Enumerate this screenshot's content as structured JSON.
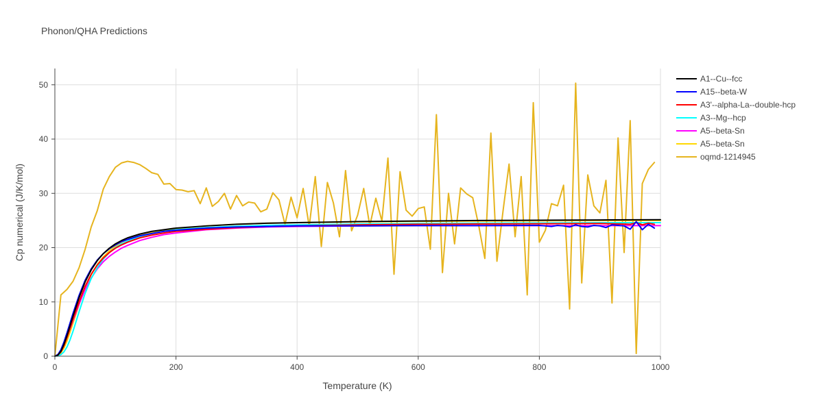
{
  "chart_data": {
    "type": "line",
    "title": "Phonon/QHA Predictions",
    "xlabel": "Temperature (K)",
    "ylabel": "Cp numerical (J/K/mol)",
    "xlim": [
      0,
      1000
    ],
    "ylim": [
      0,
      53
    ],
    "xticks": [
      0,
      200,
      400,
      600,
      800,
      1000
    ],
    "yticks": [
      0,
      10,
      20,
      30,
      40,
      50
    ],
    "grid": true,
    "legend_position": "top-right",
    "series": [
      {
        "name": "A1--Cu--fcc",
        "color": "#000000",
        "x": [
          0,
          5,
          10,
          15,
          20,
          25,
          30,
          40,
          50,
          60,
          70,
          80,
          90,
          100,
          110,
          120,
          140,
          160,
          180,
          200,
          250,
          300,
          350,
          400,
          500,
          600,
          700,
          800,
          900,
          1000
        ],
        "y": [
          0,
          0.2,
          0.9,
          2.2,
          3.8,
          5.6,
          7.4,
          10.8,
          13.7,
          15.9,
          17.6,
          18.9,
          19.9,
          20.7,
          21.3,
          21.8,
          22.5,
          23.0,
          23.3,
          23.6,
          24.0,
          24.3,
          24.5,
          24.6,
          24.8,
          24.9,
          25.0,
          25.05,
          25.1,
          25.15
        ]
      },
      {
        "name": "A15--beta-W",
        "color": "#0000ff",
        "x": [
          0,
          5,
          10,
          15,
          20,
          25,
          30,
          40,
          50,
          60,
          70,
          80,
          90,
          100,
          110,
          120,
          140,
          160,
          180,
          200,
          250,
          300,
          350,
          400,
          500,
          600,
          700,
          800,
          810,
          820,
          830,
          840,
          850,
          860,
          870,
          880,
          890,
          900,
          910,
          920,
          930,
          940,
          950,
          960,
          970,
          980,
          990
        ],
        "y": [
          0,
          0.3,
          1.2,
          2.6,
          4.3,
          6.1,
          7.9,
          11.2,
          14.0,
          16.1,
          17.7,
          18.9,
          19.8,
          20.5,
          21.1,
          21.5,
          22.2,
          22.6,
          23.0,
          23.2,
          23.6,
          23.8,
          23.9,
          24.0,
          24.0,
          24.05,
          24.05,
          24.1,
          24.0,
          23.9,
          24.1,
          24.0,
          23.8,
          24.2,
          23.9,
          23.8,
          24.1,
          24.0,
          23.7,
          24.2,
          24.1,
          24.0,
          23.4,
          24.8,
          23.3,
          24.3,
          23.6
        ]
      },
      {
        "name": "A3'--alpha-La--double-hcp",
        "color": "#ff0000",
        "x": [
          0,
          5,
          10,
          15,
          20,
          25,
          30,
          40,
          50,
          60,
          70,
          80,
          90,
          100,
          110,
          120,
          140,
          160,
          180,
          200,
          250,
          300,
          350,
          400,
          500,
          600,
          700,
          800,
          900,
          950,
          960,
          970,
          980,
          990
        ],
        "y": [
          0,
          0.2,
          0.8,
          1.9,
          3.4,
          5.1,
          6.8,
          10.0,
          12.9,
          15.1,
          16.8,
          18.1,
          19.1,
          19.9,
          20.5,
          21.0,
          21.8,
          22.3,
          22.7,
          23.0,
          23.4,
          23.7,
          23.9,
          24.0,
          24.2,
          24.3,
          24.35,
          24.4,
          24.45,
          24.3,
          24.6,
          24.2,
          24.5,
          24.3
        ]
      },
      {
        "name": "A3--Mg--hcp",
        "color": "#00ffff",
        "x": [
          0,
          5,
          10,
          15,
          20,
          25,
          30,
          40,
          50,
          60,
          70,
          80,
          90,
          100,
          110,
          120,
          140,
          160,
          180,
          200,
          250,
          300,
          350,
          400,
          500,
          600,
          700,
          800,
          900,
          1000
        ],
        "y": [
          0,
          0.05,
          0.3,
          0.8,
          1.7,
          3.0,
          4.6,
          8.2,
          11.6,
          14.3,
          16.3,
          17.9,
          19.1,
          20.0,
          20.7,
          21.2,
          22.0,
          22.6,
          23.0,
          23.3,
          23.7,
          23.95,
          24.1,
          24.2,
          24.35,
          24.45,
          24.5,
          24.55,
          24.6,
          24.6
        ]
      },
      {
        "name": "A5--beta-Sn",
        "color": "#ff00ff",
        "x": [
          0,
          5,
          10,
          15,
          20,
          25,
          30,
          40,
          50,
          60,
          70,
          80,
          90,
          100,
          110,
          120,
          140,
          160,
          180,
          200,
          250,
          300,
          350,
          400,
          500,
          600,
          700,
          800,
          900,
          1000
        ],
        "y": [
          0,
          0.3,
          1.0,
          2.1,
          3.5,
          5.0,
          6.6,
          9.6,
          12.3,
          14.4,
          16.1,
          17.4,
          18.4,
          19.2,
          19.9,
          20.4,
          21.3,
          21.9,
          22.4,
          22.7,
          23.3,
          23.6,
          23.8,
          23.9,
          24.0,
          24.05,
          24.05,
          24.05,
          24.05,
          24.05
        ]
      },
      {
        "name": "A5--beta-Sn",
        "color": "#ffd700",
        "x": [
          0,
          5,
          10,
          15,
          20,
          25,
          30,
          40,
          50,
          60,
          70,
          80,
          90,
          100,
          110,
          120,
          140,
          160,
          180,
          200,
          250,
          300,
          350,
          400,
          500,
          600,
          700,
          800,
          900,
          1000
        ],
        "y": [
          0,
          0.15,
          0.6,
          1.5,
          2.8,
          4.4,
          6.1,
          9.5,
          12.6,
          15.0,
          16.9,
          18.3,
          19.4,
          20.3,
          21.0,
          21.5,
          22.3,
          22.8,
          23.2,
          23.5,
          24.0,
          24.3,
          24.5,
          24.6,
          24.75,
          24.85,
          24.9,
          24.95,
          25.0,
          25.0
        ]
      },
      {
        "name": "oqmd-1214945",
        "color": "#e6b41e",
        "x": [
          0,
          10,
          20,
          30,
          40,
          50,
          60,
          70,
          80,
          90,
          100,
          110,
          120,
          130,
          140,
          150,
          160,
          170,
          180,
          190,
          200,
          210,
          220,
          230,
          240,
          250,
          260,
          270,
          280,
          290,
          300,
          310,
          320,
          330,
          340,
          350,
          360,
          370,
          380,
          390,
          400,
          410,
          420,
          430,
          440,
          450,
          460,
          470,
          480,
          490,
          500,
          510,
          520,
          530,
          540,
          550,
          560,
          570,
          580,
          590,
          600,
          610,
          620,
          630,
          640,
          650,
          660,
          670,
          680,
          690,
          700,
          710,
          720,
          730,
          740,
          750,
          760,
          770,
          780,
          790,
          800,
          810,
          820,
          830,
          840,
          850,
          860,
          870,
          880,
          890,
          900,
          910,
          920,
          930,
          940,
          950,
          960,
          970,
          980,
          990
        ],
        "y": [
          0,
          11.3,
          12.3,
          13.8,
          16.3,
          19.7,
          23.8,
          26.8,
          30.8,
          33.1,
          34.8,
          35.6,
          35.9,
          35.7,
          35.3,
          34.6,
          33.8,
          33.5,
          31.7,
          31.8,
          30.7,
          30.6,
          30.3,
          30.5,
          28.1,
          31.0,
          27.6,
          28.5,
          30.0,
          27.1,
          29.6,
          27.7,
          28.4,
          28.2,
          26.6,
          27.1,
          30.1,
          28.8,
          24.3,
          29.3,
          25.5,
          30.9,
          23.9,
          33.1,
          20.2,
          32.0,
          28.2,
          22.0,
          34.2,
          23.1,
          26.0,
          30.9,
          24.0,
          29.1,
          24.9,
          36.5,
          15.1,
          34.0,
          26.9,
          25.8,
          27.2,
          27.5,
          19.7,
          44.5,
          15.4,
          30.0,
          20.7,
          31.0,
          29.9,
          29.2,
          24.0,
          18.0,
          41.1,
          17.5,
          26.7,
          35.4,
          22.0,
          33.1,
          11.3,
          46.7,
          21.0,
          23.2,
          28.1,
          27.7,
          31.5,
          8.7,
          50.3,
          13.5,
          33.4,
          27.7,
          26.4,
          32.4,
          9.8,
          40.2,
          19.1,
          43.4,
          0.5,
          31.8,
          34.4,
          35.7
        ]
      }
    ]
  }
}
